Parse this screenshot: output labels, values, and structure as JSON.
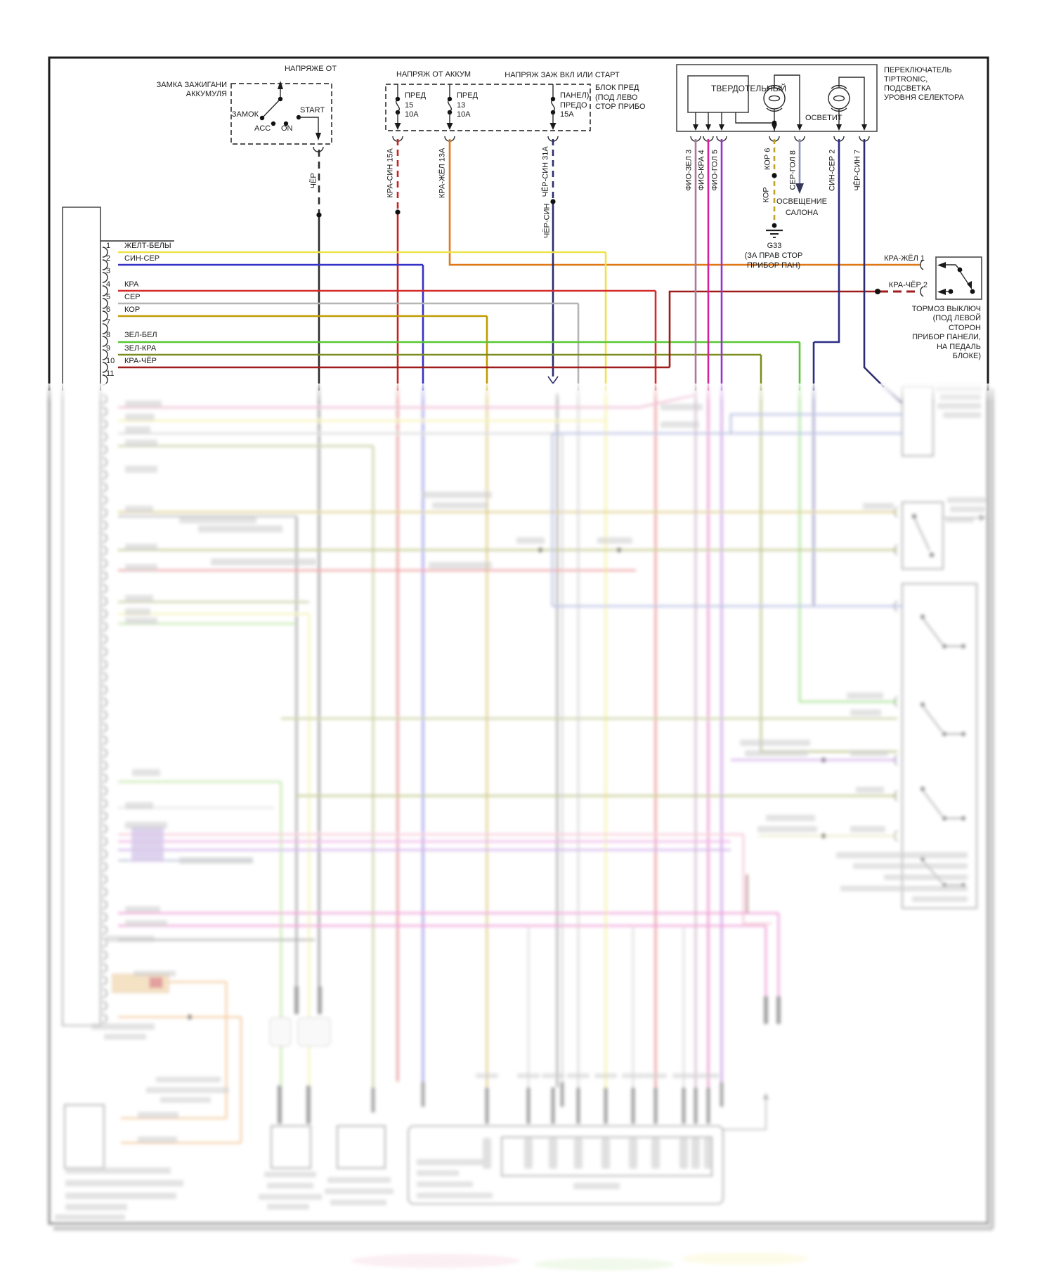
{
  "ignition_switch": {
    "supply": "НАПРЯЖЕ ОТ",
    "name_line1": "ЗАМКА ЗАЖИГАНИ",
    "name_line2": "АККУМУЛЯ",
    "lock": "ЗАМОК",
    "acc": "ACC",
    "on": "ON",
    "start": "START",
    "wire": "ЧЁР"
  },
  "fuse_panel": {
    "battery_feed": "НАПРЯЖ ОТ АККУМ",
    "ignition_feed": "НАПРЯЖ ЗАЖ ВКЛ ИЛИ СТАРТ",
    "location": [
      "БЛОК ПРЕД",
      "(ПОД ЛЕВО",
      "СТОР ПРИБО"
    ],
    "fuses": [
      {
        "name": "ПРЕД",
        "number": "15",
        "rating": "10А",
        "wire": "КРА-СИН  15А"
      },
      {
        "name": "ПРЕД",
        "number": "13",
        "rating": "10А",
        "wire": "КРА-ЖЁЛ  13А"
      },
      {
        "name": "ПАНЕЛ)",
        "number": "ПРЕДО",
        "rating": "15А",
        "wire": "ЧЁР-СИН  31А",
        "wire2": "ЧЁР-СИН"
      }
    ]
  },
  "tiptronic": {
    "module": "ТВЕРДОТЕЛЬНЫЙ",
    "lamp_label": "ОСВЕТИТ",
    "caption": [
      "ПЕРЕКЛЮЧАТЕЛЬ",
      "TIPTRONIC,",
      "ПОДСВЕТКА",
      "УРОВНЯ СЕЛЕКТОРА"
    ],
    "pin_wires": [
      "ФИО-ЗЕЛ  3",
      "ФИО-КРА  4",
      "ФИО-ГОЛ  5",
      "КОР  6",
      "СЕР-ГОЛ  8",
      "СИН-СЕР  2",
      "ЧЁР-СИН  7"
    ],
    "kor_wire": "КОР",
    "ground": {
      "id": "G33",
      "location1": "(ЗА ПРАВ СТОР",
      "location2": "ПРИБОР ПАН)"
    },
    "interior_light1": "ОСВЕЩЕНИЕ",
    "interior_light2": "САЛОНА"
  },
  "left_connector": {
    "pins": [
      [
        "1",
        "ЖЕЛТ-БЕЛЫ"
      ],
      [
        "2",
        "СИН-СЕР"
      ],
      [
        "3",
        ""
      ],
      [
        "4",
        "КРА"
      ],
      [
        "5",
        "СЕР"
      ],
      [
        "6",
        "КОР"
      ],
      [
        "7",
        ""
      ],
      [
        "8",
        "ЗЕЛ-БЕЛ"
      ],
      [
        "9",
        "ЗЕЛ-КРА"
      ],
      [
        "10",
        "КРА-ЧЁР"
      ],
      [
        "11",
        ""
      ]
    ]
  },
  "brake_switch": {
    "pin1": "КРА-ЖЁЛ  1",
    "pin2": "КРА-ЧЁР  2",
    "caption": [
      "ТОРМОЗ ВЫКЛЮЧ",
      "(ПОД ЛЕВОЙ",
      "СТОРОН",
      "ПРИБОР ПАНЕЛИ,",
      "НА ПЕДАЛЬ",
      "БЛОКЕ)"
    ]
  },
  "colors": {
    "black": "#2b2b2b",
    "red": "#d42a2a",
    "dark_red": "#9e1c1c",
    "orange": "#e07818",
    "yellow": "#eee34a",
    "blue": "#3532c8",
    "navy": "#2c2c6e",
    "gray": "#b5b5b5",
    "gold": "#c09c00",
    "green": "#58c832",
    "olive": "#7d8c1e",
    "mauve": "#aa7a9c",
    "magenta": "#d62296",
    "purple": "#9932cc",
    "gray_blue": "#8a92bc"
  }
}
